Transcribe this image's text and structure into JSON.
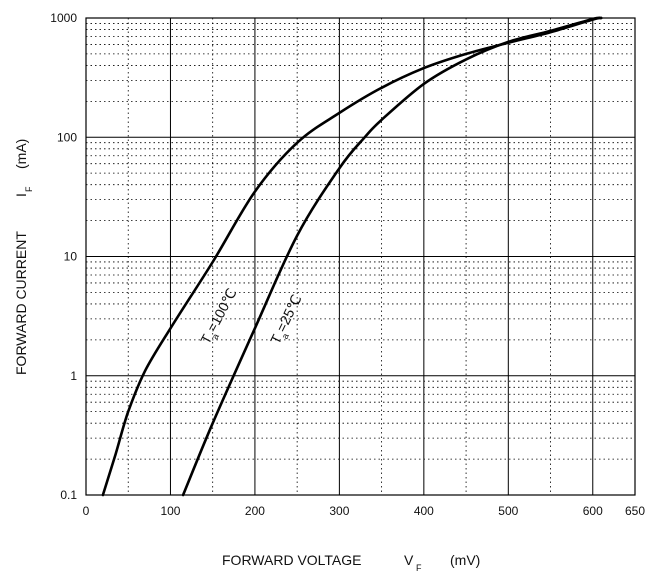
{
  "chart_data": {
    "type": "line",
    "x_axis": {
      "label": "FORWARD VOLTAGE",
      "symbol": "V",
      "symbol_sub": "F",
      "unit": "(mV)",
      "min": 0,
      "max": 650,
      "ticks": [
        0,
        100,
        200,
        300,
        400,
        500,
        600,
        650
      ],
      "tick_labels": [
        "0",
        "100",
        "200",
        "300",
        "400",
        "500",
        "600",
        "650"
      ],
      "scale": "linear"
    },
    "y_axis": {
      "label": "FORWARD CURRENT",
      "symbol": "I",
      "symbol_sub": "F",
      "unit": "(mA)",
      "min": 0.1,
      "max": 1000,
      "ticks": [
        0.1,
        1,
        10,
        100,
        1000
      ],
      "tick_labels": [
        "0.1",
        "1",
        "10",
        "100",
        "1000"
      ],
      "scale": "log"
    },
    "grid": true,
    "series": [
      {
        "name": "Ta=100°C",
        "label_main": "T",
        "label_sub": "a",
        "label_rest": "=100℃",
        "points": [
          [
            20,
            0.1
          ],
          [
            35,
            0.22
          ],
          [
            50,
            0.5
          ],
          [
            70,
            1.1
          ],
          [
            100,
            2.5
          ],
          [
            150,
            9
          ],
          [
            200,
            35
          ],
          [
            250,
            90
          ],
          [
            300,
            160
          ],
          [
            350,
            260
          ],
          [
            400,
            380
          ],
          [
            450,
            500
          ],
          [
            500,
            620
          ],
          [
            550,
            760
          ],
          [
            600,
            970
          ],
          [
            610,
            1000
          ]
        ]
      },
      {
        "name": "Ta=25°C",
        "label_main": "T",
        "label_sub": "a",
        "label_rest": "=25℃",
        "points": [
          [
            115,
            0.1
          ],
          [
            150,
            0.4
          ],
          [
            200,
            2.5
          ],
          [
            250,
            15
          ],
          [
            300,
            55
          ],
          [
            330,
            100
          ],
          [
            350,
            140
          ],
          [
            400,
            280
          ],
          [
            450,
            450
          ],
          [
            500,
            630
          ],
          [
            550,
            780
          ],
          [
            600,
            980
          ],
          [
            610,
            1000
          ]
        ]
      }
    ]
  }
}
